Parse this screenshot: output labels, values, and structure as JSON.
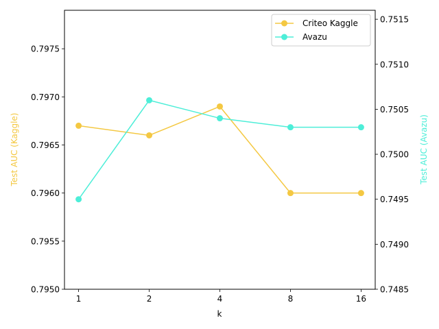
{
  "chart_data": {
    "type": "line",
    "title": "",
    "xlabel": "k",
    "x": [
      "1",
      "2",
      "4",
      "8",
      "16"
    ],
    "ylabel_left": "Test AUC (Kaggle)",
    "ylabel_right": "Test AUC (Avazu)",
    "ylim_left": [
      0.795,
      0.7979
    ],
    "ylim_right": [
      0.7485,
      0.7516
    ],
    "yticks_left": [
      "0.7950",
      "0.7955",
      "0.7960",
      "0.7965",
      "0.7970",
      "0.7975"
    ],
    "yticks_right": [
      "0.7485",
      "0.7490",
      "0.7495",
      "0.7500",
      "0.7505",
      "0.7510",
      "0.7515"
    ],
    "grid": false,
    "legend_position": "top-right",
    "series": [
      {
        "name": "Criteo Kaggle",
        "axis": "left",
        "color": "#f4c842",
        "marker": "circle",
        "values": [
          0.7967,
          0.7966,
          0.7969,
          0.796,
          0.796
        ]
      },
      {
        "name": "Avazu",
        "axis": "right",
        "color": "#4deed8",
        "marker": "circle",
        "values": [
          0.7495,
          0.7506,
          0.7504,
          0.7503,
          0.7503
        ]
      }
    ]
  }
}
